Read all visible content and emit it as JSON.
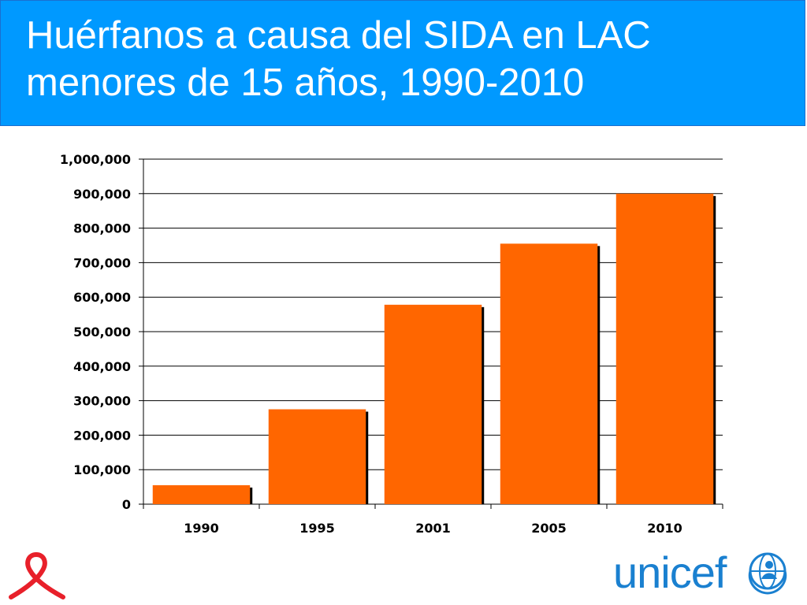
{
  "header": {
    "title_line1": "Huérfanos a causa del SIDA en LAC",
    "title_line2": "menores de 15 años, 1990-2010"
  },
  "colors": {
    "header_bg": "#0099ff",
    "bar_fill": "#ff6600",
    "bar_shadow": "#000000",
    "brand_blue": "#1a80d0",
    "ribbon_red": "#e8202a"
  },
  "chart_data": {
    "type": "bar",
    "categories": [
      "1990",
      "1995",
      "2001",
      "2005",
      "2010"
    ],
    "values": [
      55000,
      275000,
      578000,
      755000,
      900000
    ],
    "ylim": [
      0,
      1000000
    ],
    "yticks": [
      0,
      100000,
      200000,
      300000,
      400000,
      500000,
      600000,
      700000,
      800000,
      900000,
      1000000
    ],
    "ytick_labels": [
      "0",
      "100,000",
      "200,000",
      "300,000",
      "400,000",
      "500,000",
      "600,000",
      "700,000",
      "800,000",
      "900,000",
      "1,000,000"
    ],
    "grid": true,
    "legend": "none"
  },
  "logos": {
    "ribbon_icon": "aids-awareness-ribbon-icon",
    "unicef_text": "unicef",
    "unicef_emblem": "unicef-emblem-icon"
  }
}
